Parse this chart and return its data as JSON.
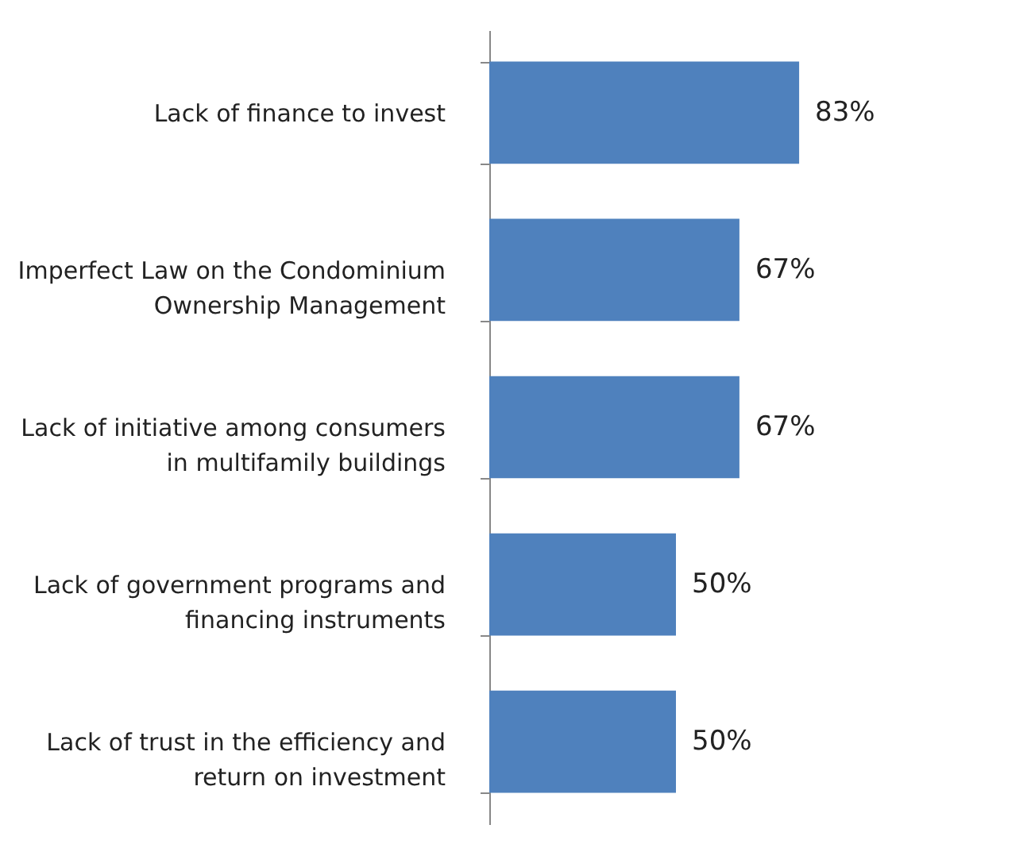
{
  "chart_data": {
    "type": "bar",
    "orientation": "horizontal",
    "categories": [
      "Lack of finance to invest",
      "Imperfect Law on the Condominium Ownership Management",
      "Lack of initiative among consumers in multifamily buildings",
      "Lack of government programs and financing instruments",
      "Lack of trust in the efficiency and return on investment"
    ],
    "values": [
      83,
      67,
      67,
      50,
      50
    ],
    "value_labels": [
      "83%",
      "67%",
      "67%",
      "50%",
      "50%"
    ],
    "color": "#4f81bd"
  }
}
